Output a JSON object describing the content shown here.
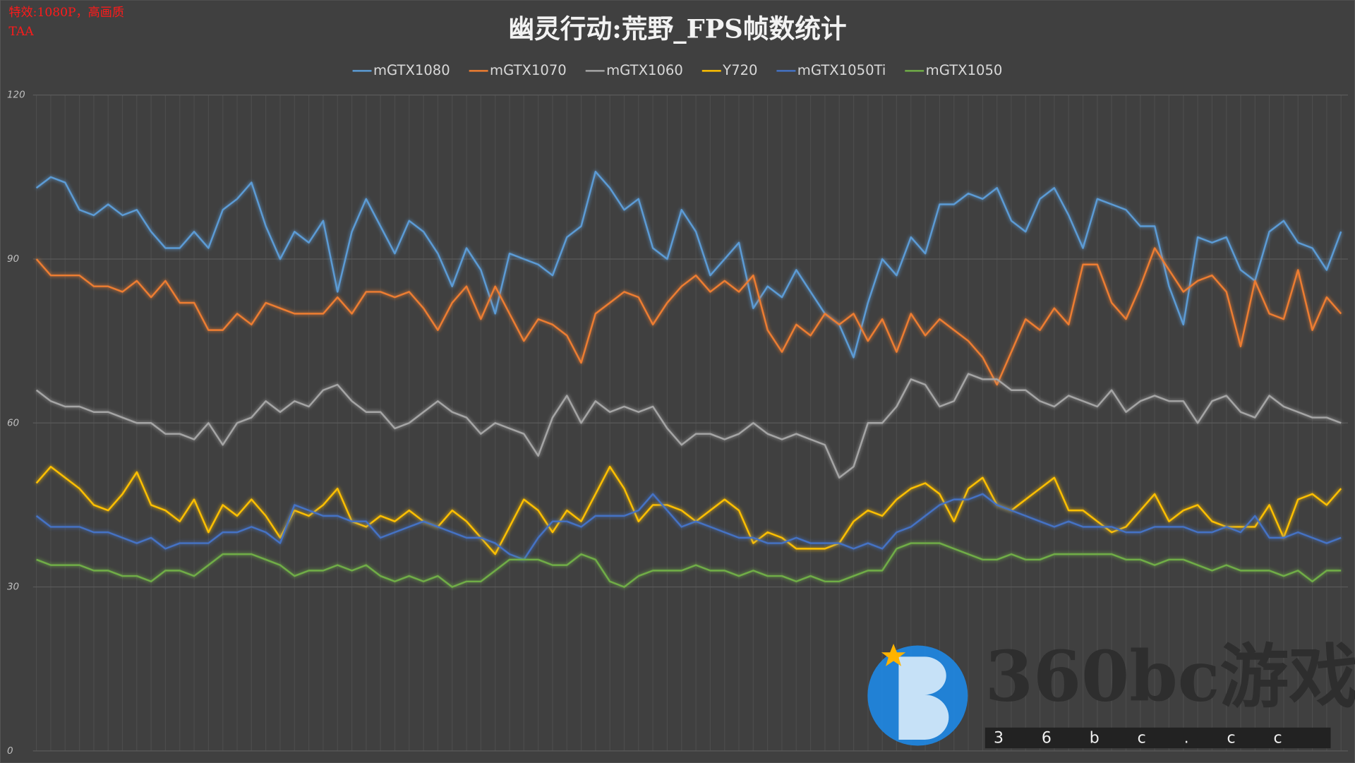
{
  "chart_data": {
    "type": "line",
    "title": "幽灵行动:荒野_FPS帧数统计",
    "annotations": [
      "特效:1080P，高画质",
      "TAA"
    ],
    "watermark": [
      "360bc游戏",
      "36bc.cc"
    ],
    "ylim": [
      0,
      120
    ],
    "yticks": [
      0,
      30,
      60,
      90,
      120
    ],
    "grid": true,
    "legend": "top",
    "series": [
      {
        "name": "mGTX1080",
        "color": "#5b9bd5",
        "values": [
          103,
          105,
          104,
          99,
          98,
          100,
          98,
          99,
          95,
          92,
          92,
          95,
          92,
          99,
          101,
          104,
          96,
          90,
          95,
          93,
          97,
          84,
          95,
          101,
          96,
          91,
          97,
          95,
          91,
          85,
          92,
          88,
          80,
          91,
          90,
          89,
          87,
          94,
          96,
          106,
          103,
          99,
          101,
          92,
          90,
          99,
          95,
          87,
          90,
          93,
          81,
          85,
          83,
          88,
          84,
          80,
          78,
          72,
          82,
          90,
          87,
          94,
          91,
          100,
          100,
          102,
          101,
          103,
          97,
          95,
          101,
          103,
          98,
          92,
          101,
          100,
          99,
          96,
          96,
          85,
          78,
          94,
          93,
          94,
          88,
          86,
          95,
          97,
          93,
          92,
          88,
          95
        ]
      },
      {
        "name": "mGTX1070",
        "color": "#ed7d31",
        "values": [
          90,
          87,
          87,
          87,
          85,
          85,
          84,
          86,
          83,
          86,
          82,
          82,
          77,
          77,
          80,
          78,
          82,
          81,
          80,
          80,
          80,
          83,
          80,
          84,
          84,
          83,
          84,
          81,
          77,
          82,
          85,
          79,
          85,
          80,
          75,
          79,
          78,
          76,
          71,
          80,
          82,
          84,
          83,
          78,
          82,
          85,
          87,
          84,
          86,
          84,
          87,
          77,
          73,
          78,
          76,
          80,
          78,
          80,
          75,
          79,
          73,
          80,
          76,
          79,
          77,
          75,
          72,
          67,
          73,
          79,
          77,
          81,
          78,
          89,
          89,
          82,
          79,
          85,
          92,
          88,
          84,
          86,
          87,
          84,
          74,
          86,
          80,
          79,
          88,
          77,
          83,
          80
        ]
      },
      {
        "name": "mGTX1060",
        "color": "#a5a5a5",
        "values": [
          66,
          64,
          63,
          63,
          62,
          62,
          61,
          60,
          60,
          58,
          58,
          57,
          60,
          56,
          60,
          61,
          64,
          62,
          64,
          63,
          66,
          67,
          64,
          62,
          62,
          59,
          60,
          62,
          64,
          62,
          61,
          58,
          60,
          59,
          58,
          54,
          61,
          65,
          60,
          64,
          62,
          63,
          62,
          63,
          59,
          56,
          58,
          58,
          57,
          58,
          60,
          58,
          57,
          58,
          57,
          56,
          50,
          52,
          60,
          60,
          63,
          68,
          67,
          63,
          64,
          69,
          68,
          68,
          66,
          66,
          64,
          63,
          65,
          64,
          63,
          66,
          62,
          64,
          65,
          64,
          64,
          60,
          64,
          65,
          62,
          61,
          65,
          63,
          62,
          61,
          61,
          60
        ]
      },
      {
        "name": "Y720",
        "color": "#ffc000",
        "values": [
          49,
          52,
          50,
          48,
          45,
          44,
          47,
          51,
          45,
          44,
          42,
          46,
          40,
          45,
          43,
          46,
          43,
          39,
          44,
          43,
          45,
          48,
          42,
          41,
          43,
          42,
          44,
          42,
          41,
          44,
          42,
          39,
          36,
          41,
          46,
          44,
          40,
          44,
          42,
          47,
          52,
          48,
          42,
          45,
          45,
          44,
          42,
          44,
          46,
          44,
          38,
          40,
          39,
          37,
          37,
          37,
          38,
          42,
          44,
          43,
          46,
          48,
          49,
          47,
          42,
          48,
          50,
          45,
          44,
          46,
          48,
          50,
          44,
          44,
          42,
          40,
          41,
          44,
          47,
          42,
          44,
          45,
          42,
          41,
          41,
          41,
          45,
          39,
          46,
          47,
          45,
          48
        ]
      },
      {
        "name": "mGTX1050Ti",
        "color": "#4472c4",
        "values": [
          43,
          41,
          41,
          41,
          40,
          40,
          39,
          38,
          39,
          37,
          38,
          38,
          38,
          40,
          40,
          41,
          40,
          38,
          45,
          44,
          43,
          43,
          42,
          42,
          39,
          40,
          41,
          42,
          41,
          40,
          39,
          39,
          38,
          36,
          35,
          39,
          42,
          42,
          41,
          43,
          43,
          43,
          44,
          47,
          44,
          41,
          42,
          41,
          40,
          39,
          39,
          38,
          38,
          39,
          38,
          38,
          38,
          37,
          38,
          37,
          40,
          41,
          43,
          45,
          46,
          46,
          47,
          45,
          44,
          43,
          42,
          41,
          42,
          41,
          41,
          41,
          40,
          40,
          41,
          41,
          41,
          40,
          40,
          41,
          40,
          43,
          39,
          39,
          40,
          39,
          38,
          39
        ]
      },
      {
        "name": "mGTX1050",
        "color": "#70ad47",
        "values": [
          35,
          34,
          34,
          34,
          33,
          33,
          32,
          32,
          31,
          33,
          33,
          32,
          34,
          36,
          36,
          36,
          35,
          34,
          32,
          33,
          33,
          34,
          33,
          34,
          32,
          31,
          32,
          31,
          32,
          30,
          31,
          31,
          33,
          35,
          35,
          35,
          34,
          34,
          36,
          35,
          31,
          30,
          32,
          33,
          33,
          33,
          34,
          33,
          33,
          32,
          33,
          32,
          32,
          31,
          32,
          31,
          31,
          32,
          33,
          33,
          37,
          38,
          38,
          38,
          37,
          36,
          35,
          35,
          36,
          35,
          35,
          36,
          36,
          36,
          36,
          36,
          35,
          35,
          34,
          35,
          35,
          34,
          33,
          34,
          33,
          33,
          33,
          32,
          33,
          31,
          33,
          33
        ]
      }
    ]
  }
}
